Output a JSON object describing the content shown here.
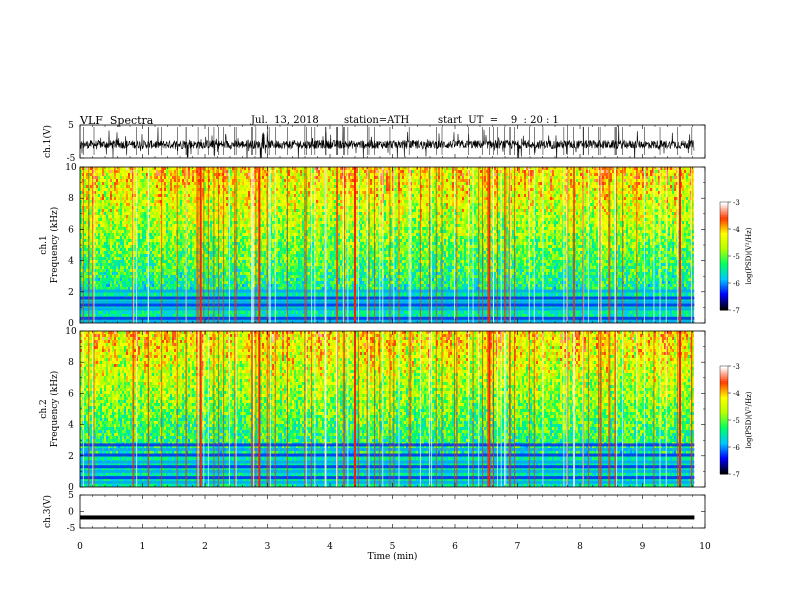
{
  "header": {
    "title": "VLF  Spectra",
    "date": "Jul.  13, 2018",
    "station": "station=ATH",
    "start": "start  UT  =    9  : 20 : 1"
  },
  "chart_data": [
    {
      "type": "line",
      "name": "ch1-waveform",
      "ylabel": "ch.1(V)",
      "ylim": [
        -5,
        5
      ],
      "yticks": [
        "5",
        "-5"
      ],
      "xlim": [
        0,
        10
      ],
      "data_end_min": 9.83
    },
    {
      "type": "heatmap",
      "name": "ch1-spectrogram",
      "ylabel": [
        "ch.1",
        "Frequency  (kHz)"
      ],
      "ylim": [
        0,
        10
      ],
      "yticks": [
        "0",
        "2",
        "4",
        "6",
        "8",
        "10"
      ],
      "xlim": [
        0,
        10
      ],
      "data_end_min": 9.83,
      "colorbar": {
        "label": "log(PSD)(V²/Hz)",
        "range": [
          -7,
          -3
        ],
        "ticks": [
          "-3",
          "-4",
          "-5",
          "-6",
          "-7"
        ]
      },
      "bands_khz": [
        0.1,
        0.3,
        0.9,
        1.15,
        1.35,
        1.6,
        2.05
      ]
    },
    {
      "type": "heatmap",
      "name": "ch2-spectrogram",
      "ylabel": [
        "ch.2",
        "Frequency  (kHz)"
      ],
      "ylim": [
        0,
        10
      ],
      "yticks": [
        "0",
        "2",
        "4",
        "6",
        "8",
        "10"
      ],
      "xlim": [
        0,
        10
      ],
      "data_end_min": 9.83,
      "colorbar": {
        "label": "log(PSD)(V²/Hz)",
        "range": [
          -7,
          -3
        ],
        "ticks": [
          "-3",
          "-4",
          "-5",
          "-6",
          "-7"
        ]
      },
      "bands_khz": [
        0.3,
        0.6,
        1.0,
        1.3,
        1.6,
        2.05,
        2.4,
        2.7
      ]
    },
    {
      "type": "line",
      "name": "ch3-waveform",
      "ylabel": "ch.3(V)",
      "ylim": [
        -5,
        5
      ],
      "yticks": [
        "5",
        "0",
        "-5"
      ],
      "xlim": [
        0,
        10
      ],
      "level_v": -1.8,
      "data_end_min": 9.83
    }
  ],
  "x_axis": {
    "label": "Time  (min)",
    "ticks": [
      "0",
      "1",
      "2",
      "3",
      "4",
      "5",
      "6",
      "7",
      "8",
      "9",
      "10"
    ],
    "range": [
      0,
      10
    ]
  },
  "colors": {
    "colormap": [
      "#000000",
      "#0000ff",
      "#00c8ff",
      "#00ff64",
      "#b4ff00",
      "#ffff00",
      "#ff3c00",
      "#ffffff"
    ]
  }
}
